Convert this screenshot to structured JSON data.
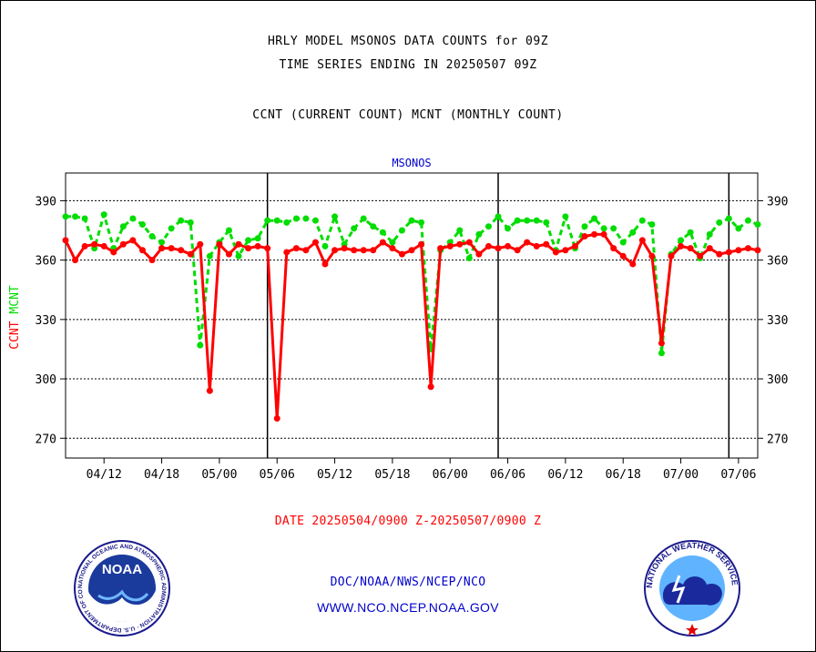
{
  "chart_data": {
    "type": "line",
    "title_lines": [
      "HRLY MODEL MSONOS DATA COUNTS for 09Z",
      "TIME SERIES ENDING IN 20250507 09Z"
    ],
    "subtitle": "CCNT (CURRENT COUNT) MCNT (MONTHLY COUNT)",
    "panel_label": "MSONOS",
    "ylabel_parts": [
      {
        "text": "CCNT",
        "color": "#ff0000"
      },
      {
        "text": "MCNT",
        "color": "#00dd00"
      }
    ],
    "ylim": [
      260,
      404
    ],
    "yticks": [
      270,
      300,
      330,
      360,
      390
    ],
    "x_tick_labels": [
      "04/12",
      "04/18",
      "05/00",
      "05/06",
      "05/12",
      "05/18",
      "06/00",
      "06/06",
      "06/12",
      "06/18",
      "07/00",
      "07/06"
    ],
    "x_tick_positions": [
      2,
      5,
      8,
      11,
      14,
      17,
      20,
      23,
      26,
      29,
      32,
      35
    ],
    "x_range": [
      0,
      36
    ],
    "day_boundaries": [
      10.5,
      22.5,
      34.5
    ],
    "grid": true,
    "series": [
      {
        "name": "CCNT",
        "color": "#ff0000",
        "style": "solid",
        "x": [
          0,
          0.5,
          1,
          1.5,
          2,
          2.5,
          3,
          3.5,
          4,
          4.5,
          5,
          5.5,
          6,
          6.5,
          7,
          7.5,
          8,
          8.5,
          9,
          9.5,
          10,
          10.5,
          11,
          11.5,
          12,
          12.5,
          13,
          13.5,
          14,
          14.5,
          15,
          15.5,
          16,
          16.5,
          17,
          17.5,
          18,
          18.5,
          19,
          19.5,
          20,
          20.5,
          21,
          21.5,
          22,
          22.5,
          23,
          23.5,
          24,
          24.5,
          25,
          25.5,
          26,
          26.5,
          27,
          27.5,
          28,
          28.5,
          29,
          29.5,
          30,
          30.5,
          31,
          31.5,
          32,
          32.5,
          33,
          33.5,
          34,
          34.5,
          35,
          35.5,
          36
        ],
        "values": [
          370,
          360,
          367,
          368,
          367,
          364,
          368,
          370,
          365,
          360,
          366,
          366,
          365,
          363,
          368,
          294,
          368,
          363,
          368,
          366,
          367,
          366,
          280,
          364,
          366,
          365,
          369,
          358,
          365,
          366,
          365,
          365,
          365,
          369,
          366,
          363,
          365,
          368,
          296,
          366,
          367,
          368,
          369,
          363,
          367,
          366,
          367,
          365,
          369,
          367,
          368,
          364,
          365,
          367,
          372,
          373,
          373,
          366,
          362,
          358,
          370,
          362,
          318,
          362,
          367,
          366,
          362,
          366,
          363,
          364,
          365,
          366,
          365
        ],
        "value_labels": []
      },
      {
        "name": "MCNT",
        "color": "#00dd00",
        "style": "dashed",
        "x": [
          0,
          0.5,
          1,
          1.5,
          2,
          2.5,
          3,
          3.5,
          4,
          4.5,
          5,
          5.5,
          6,
          6.5,
          7,
          7.5,
          8,
          8.5,
          9,
          9.5,
          10,
          10.5,
          11,
          11.5,
          12,
          12.5,
          13,
          13.5,
          14,
          14.5,
          15,
          15.5,
          16,
          16.5,
          17,
          17.5,
          18,
          18.5,
          19,
          19.5,
          20,
          20.5,
          21,
          21.5,
          22,
          22.5,
          23,
          23.5,
          24,
          24.5,
          25,
          25.5,
          26,
          26.5,
          27,
          27.5,
          28,
          28.5,
          29,
          29.5,
          30,
          30.5,
          31,
          31.5,
          32,
          32.5,
          33,
          33.5,
          34,
          34.5,
          35,
          35.5,
          36
        ],
        "values": [
          382,
          382,
          381,
          366,
          383,
          366,
          377,
          381,
          378,
          372,
          369,
          376,
          380,
          379,
          317,
          362,
          369,
          375,
          362,
          370,
          371,
          380,
          380,
          379,
          381,
          381,
          380,
          367,
          382,
          368,
          376,
          381,
          377,
          374,
          369,
          375,
          380,
          379,
          315,
          365,
          369,
          375,
          361,
          373,
          377,
          382,
          376,
          380,
          380,
          380,
          379,
          365,
          382,
          366,
          377,
          381,
          376,
          376,
          369,
          374,
          380,
          378,
          313,
          363,
          370,
          374,
          361,
          373,
          379,
          381,
          376,
          380,
          378
        ]
      }
    ]
  },
  "footer": {
    "date_range": "DATE 20250504/0900 Z-20250507/0900 Z",
    "org_path": "DOC/NOAA/NWS/NCEP/NCO",
    "website": "WWW.NCO.NCEP.NOAA.GOV",
    "noaa_logo_text": "NOAA",
    "noaa_ring_text": "NATIONAL OCEANIC AND ATMOSPHERIC ADMINISTRATION · U.S. DEPARTMENT OF COMMERCE ·",
    "nws_ring_text": "NATIONAL WEATHER SERVICE"
  },
  "colors": {
    "ccnt": "#ff0000",
    "mcnt": "#00dd00",
    "panel_label": "#0000cc",
    "footer_link": "#0000cc",
    "date_text": "#ff0000"
  }
}
